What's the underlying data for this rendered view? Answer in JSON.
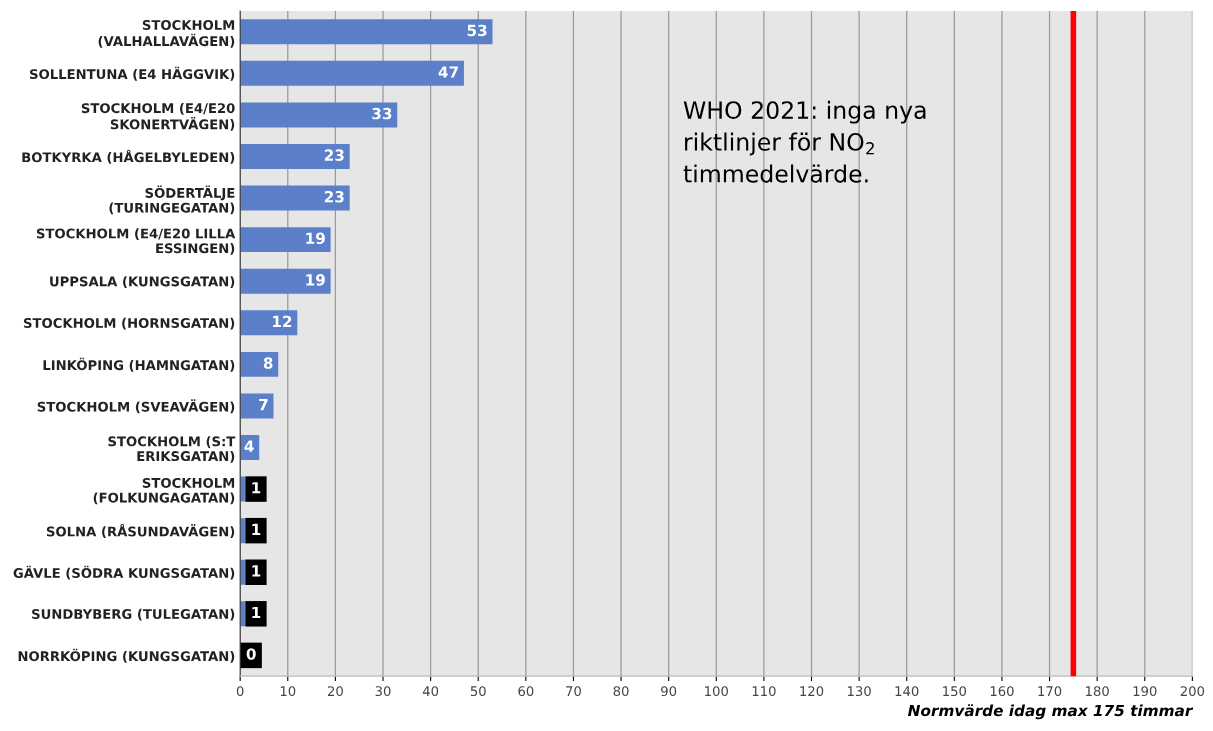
{
  "chart_data": {
    "type": "bar",
    "orientation": "horizontal",
    "categories": [
      "STOCKHOLM (VALHALLAVÄGEN)",
      "SOLLENTUNA (E4 HÄGGVIK)",
      "STOCKHOLM (E4/E20 SKONERTVÄGEN)",
      "BOTKYRKA (HÅGELBYLEDEN)",
      "SÖDERTÄLJE (TURINGEGATAN)",
      "STOCKHOLM (E4/E20 LILLA ESSINGEN)",
      "UPPSALA (KUNGSGATAN)",
      "STOCKHOLM (HORNSGATAN)",
      "LINKÖPING (HAMNGATAN)",
      "STOCKHOLM (SVEAVÄGEN)",
      "STOCKHOLM (S:T ERIKSGATAN)",
      "STOCKHOLM (FOLKUNGAGATAN)",
      "SOLNA (RÅSUNDAVÄGEN)",
      "GÄVLE (SÖDRA KUNGSGATAN)",
      "SUNDBYBERG (TULEGATAN)",
      "NORRKÖPING (KUNGSGATAN)"
    ],
    "values": [
      53,
      47,
      33,
      23,
      23,
      19,
      19,
      12,
      8,
      7,
      4,
      1,
      1,
      1,
      1,
      0
    ],
    "color": "#5b7fc9",
    "data_labels": true,
    "xlabel": "Normvärde idag max 175 timmar",
    "xlim": [
      0,
      200
    ],
    "xticks": [
      0,
      10,
      20,
      30,
      40,
      50,
      60,
      70,
      80,
      90,
      100,
      110,
      120,
      130,
      140,
      150,
      160,
      170,
      180,
      190,
      200
    ],
    "grid": "x",
    "ref_lines": [
      {
        "axis": "x",
        "value": 175,
        "color": "#ff0000"
      }
    ],
    "annotations": [
      "WHO 2021: inga nya riktlinjer för NO$_{2}$ timmedelvärde."
    ]
  }
}
